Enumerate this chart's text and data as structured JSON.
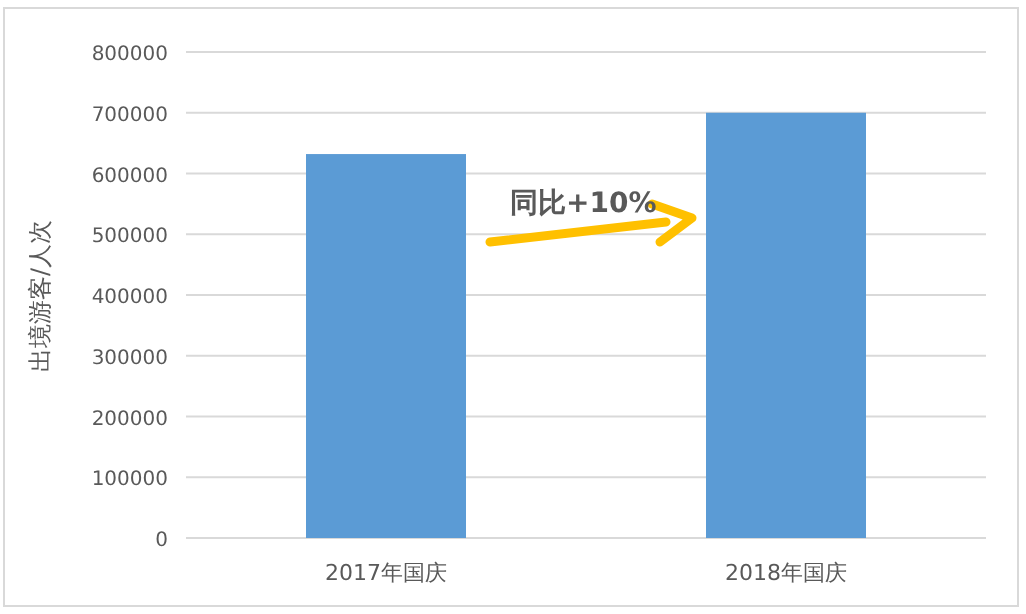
{
  "chart_data": {
    "type": "bar",
    "ylabel": "出境游客/人次",
    "categories": [
      "2017年国庆",
      "2018年国庆"
    ],
    "values": [
      632000,
      700000
    ],
    "color": "#5b9bd5",
    "ylim": [
      0,
      800000
    ],
    "yticks": [
      0,
      100000,
      200000,
      300000,
      400000,
      500000,
      600000,
      700000,
      800000
    ],
    "grid": "y",
    "annotations": [
      "同比+10%"
    ]
  }
}
